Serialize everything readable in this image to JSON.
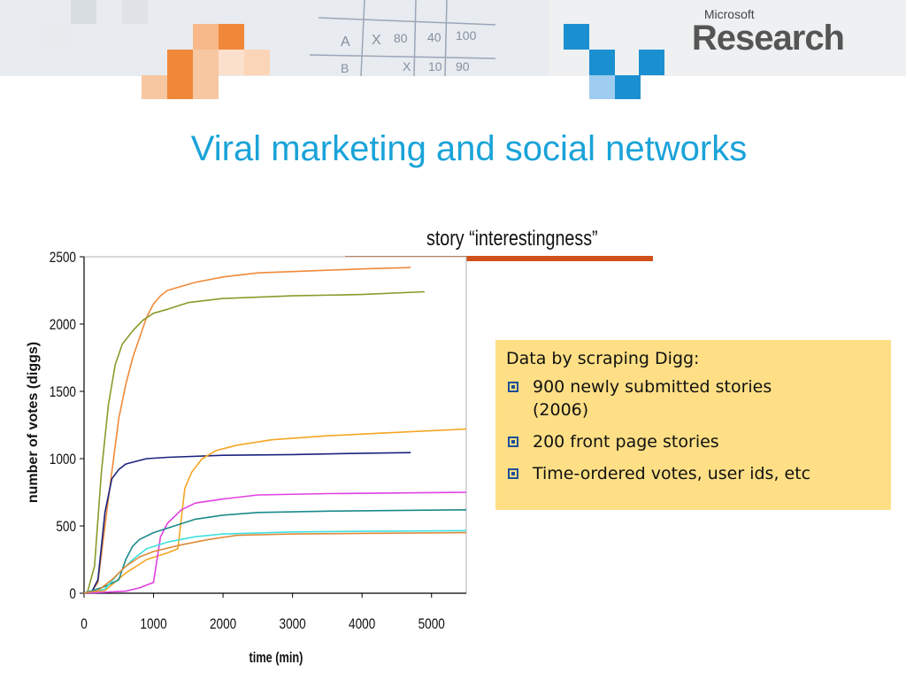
{
  "slide": {
    "title": "Viral marketing and social networks",
    "logo_small": "Microsoft",
    "logo_big": "Research",
    "story_label": "story “interestingness”"
  },
  "info": {
    "heading": "Data by scraping Digg:",
    "bullets": [
      "900 newly submitted stories (2006)",
      "200 front page stories",
      "Time-ordered votes, user ids, etc"
    ]
  },
  "colors": {
    "title": "#1aa3d9",
    "infobox": "#fedf85",
    "story_bar": "#d0511a"
  },
  "chart_data": {
    "type": "line",
    "title": "",
    "xlabel": "time (min)",
    "ylabel": "number of votes (diggs)",
    "xlim": [
      0,
      5500
    ],
    "ylim": [
      0,
      2500
    ],
    "xticks": [
      0,
      1000,
      2000,
      3000,
      4000,
      5000
    ],
    "yticks": [
      0,
      500,
      1000,
      1500,
      2000,
      2500
    ],
    "grid": false,
    "series": [
      {
        "color": "#f08a3a",
        "points": [
          [
            0,
            0
          ],
          [
            100,
            5
          ],
          [
            200,
            80
          ],
          [
            300,
            500
          ],
          [
            400,
            900
          ],
          [
            500,
            1300
          ],
          [
            600,
            1550
          ],
          [
            700,
            1750
          ],
          [
            800,
            1900
          ],
          [
            900,
            2050
          ],
          [
            1000,
            2150
          ],
          [
            1100,
            2210
          ],
          [
            1200,
            2250
          ],
          [
            1400,
            2280
          ],
          [
            1600,
            2310
          ],
          [
            2000,
            2350
          ],
          [
            2500,
            2380
          ],
          [
            3000,
            2390
          ],
          [
            3500,
            2400
          ],
          [
            4000,
            2410
          ],
          [
            4700,
            2420
          ]
        ]
      },
      {
        "color": "#8a9a2a",
        "points": [
          [
            0,
            0
          ],
          [
            50,
            10
          ],
          [
            150,
            200
          ],
          [
            250,
            900
          ],
          [
            350,
            1400
          ],
          [
            450,
            1700
          ],
          [
            550,
            1850
          ],
          [
            700,
            1950
          ],
          [
            850,
            2030
          ],
          [
            1000,
            2080
          ],
          [
            1200,
            2110
          ],
          [
            1500,
            2160
          ],
          [
            2000,
            2190
          ],
          [
            3000,
            2210
          ],
          [
            4000,
            2220
          ],
          [
            4900,
            2240
          ]
        ]
      },
      {
        "color": "#1a237e",
        "points": [
          [
            0,
            0
          ],
          [
            100,
            0
          ],
          [
            200,
            100
          ],
          [
            300,
            600
          ],
          [
            400,
            850
          ],
          [
            500,
            920
          ],
          [
            600,
            960
          ],
          [
            750,
            980
          ],
          [
            900,
            1000
          ],
          [
            1200,
            1010
          ],
          [
            2000,
            1025
          ],
          [
            3000,
            1030
          ],
          [
            4000,
            1040
          ],
          [
            4700,
            1045
          ]
        ]
      },
      {
        "color": "#f5a623",
        "points": [
          [
            0,
            0
          ],
          [
            300,
            20
          ],
          [
            600,
            150
          ],
          [
            900,
            250
          ],
          [
            1200,
            300
          ],
          [
            1350,
            330
          ],
          [
            1450,
            780
          ],
          [
            1550,
            900
          ],
          [
            1700,
            1000
          ],
          [
            1900,
            1060
          ],
          [
            2200,
            1100
          ],
          [
            2700,
            1140
          ],
          [
            3500,
            1170
          ],
          [
            4300,
            1190
          ],
          [
            5500,
            1220
          ]
        ]
      },
      {
        "color": "#e040e0",
        "points": [
          [
            0,
            0
          ],
          [
            600,
            15
          ],
          [
            800,
            40
          ],
          [
            1000,
            80
          ],
          [
            1100,
            420
          ],
          [
            1200,
            520
          ],
          [
            1400,
            620
          ],
          [
            1600,
            670
          ],
          [
            2000,
            700
          ],
          [
            2500,
            730
          ],
          [
            3500,
            740
          ],
          [
            5500,
            750
          ]
        ]
      },
      {
        "color": "#1a8a8a",
        "points": [
          [
            0,
            0
          ],
          [
            300,
            50
          ],
          [
            500,
            100
          ],
          [
            600,
            250
          ],
          [
            700,
            350
          ],
          [
            800,
            400
          ],
          [
            1000,
            450
          ],
          [
            1300,
            500
          ],
          [
            1600,
            550
          ],
          [
            2000,
            580
          ],
          [
            2500,
            600
          ],
          [
            3500,
            610
          ],
          [
            5500,
            620
          ]
        ]
      },
      {
        "color": "#40e0e0",
        "points": [
          [
            0,
            0
          ],
          [
            300,
            30
          ],
          [
            500,
            150
          ],
          [
            700,
            250
          ],
          [
            900,
            330
          ],
          [
            1200,
            380
          ],
          [
            1600,
            420
          ],
          [
            2000,
            440
          ],
          [
            3000,
            455
          ],
          [
            4000,
            460
          ],
          [
            5500,
            465
          ]
        ]
      },
      {
        "color": "#e08a3a",
        "points": [
          [
            0,
            0
          ],
          [
            200,
            20
          ],
          [
            400,
            100
          ],
          [
            600,
            200
          ],
          [
            800,
            270
          ],
          [
            1000,
            310
          ],
          [
            1400,
            360
          ],
          [
            1800,
            400
          ],
          [
            2200,
            430
          ],
          [
            3000,
            440
          ],
          [
            4000,
            445
          ],
          [
            5500,
            450
          ]
        ]
      }
    ]
  }
}
